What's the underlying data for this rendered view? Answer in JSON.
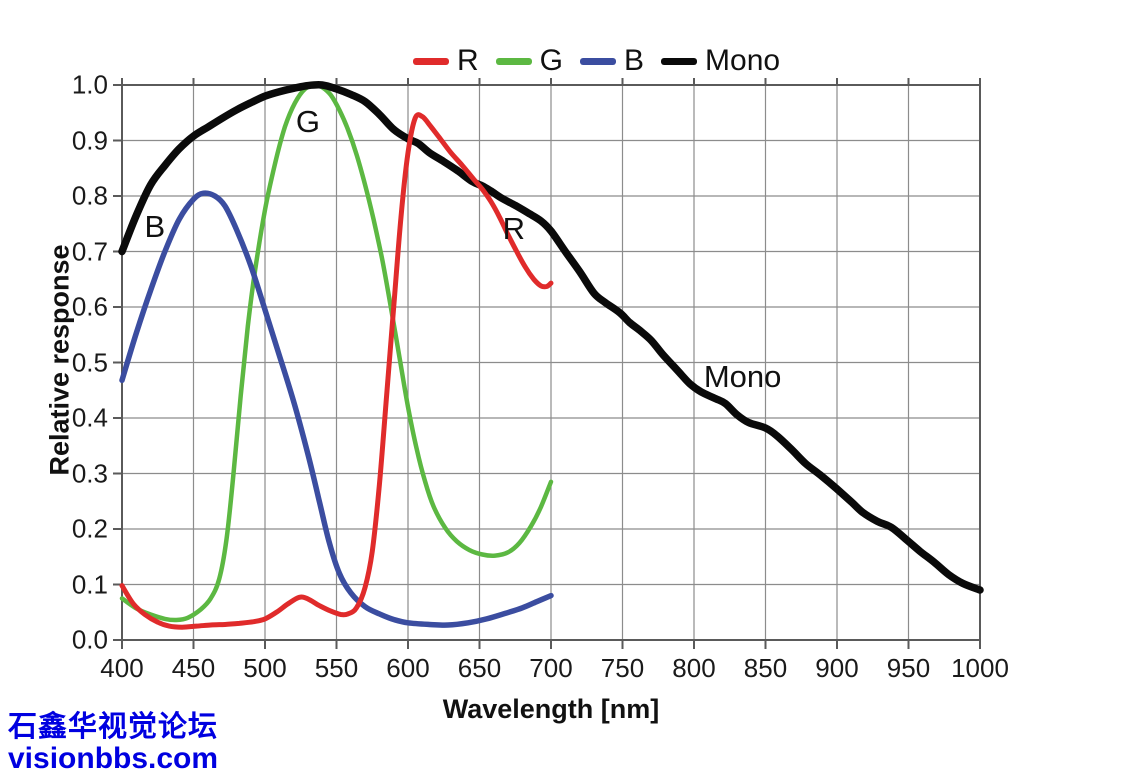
{
  "watermark": {
    "line1": "石鑫华视觉论坛",
    "line2": "visionbbs.com",
    "color": "#0000e0"
  },
  "chart_data": {
    "type": "line",
    "title": "",
    "xlabel": "Wavelength [nm]",
    "ylabel": "Relative response",
    "xlim": [
      400,
      1000
    ],
    "ylim": [
      0.0,
      1.0
    ],
    "grid": true,
    "colors": {
      "grid": "#8c8c8c",
      "axis": "#5a5a5a",
      "background": "#ffffff"
    },
    "x_tick_values": [
      400,
      450,
      500,
      550,
      600,
      650,
      700,
      750,
      800,
      850,
      900,
      950,
      1000
    ],
    "x_tick_labels": [
      "400",
      "450",
      "500",
      "550",
      "600",
      "650",
      "700",
      "750",
      "800",
      "850",
      "900",
      "950",
      "1000"
    ],
    "y_tick_values": [
      1.0,
      0.9,
      0.8,
      0.7,
      0.6,
      0.5,
      0.4,
      0.3,
      0.2,
      0.1,
      0.0
    ],
    "y_tick_labels": [
      "1.0",
      "0.9",
      "0.8",
      "0.7",
      "0.6",
      "0.5",
      "0.4",
      "0.3",
      "0.2",
      "0.1",
      "0.0"
    ],
    "legend": {
      "position": "top-center",
      "items": [
        {
          "label": "R",
          "color": "#e02b2b"
        },
        {
          "label": "G",
          "color": "#5cb842"
        },
        {
          "label": "B",
          "color": "#3b4da0"
        },
        {
          "label": "Mono",
          "color": "#0a0a0a"
        }
      ]
    },
    "annotations": [
      {
        "text": "B",
        "x": 423,
        "y": 0.745
      },
      {
        "text": "G",
        "x": 530,
        "y": 0.933
      },
      {
        "text": "R",
        "x": 674,
        "y": 0.74
      },
      {
        "text": "Mono",
        "x": 834,
        "y": 0.474
      }
    ],
    "series": [
      {
        "name": "G",
        "color": "#5cb842",
        "width": 4.5,
        "points": [
          [
            400,
            0.075
          ],
          [
            410,
            0.057
          ],
          [
            420,
            0.046
          ],
          [
            430,
            0.038
          ],
          [
            438,
            0.036
          ],
          [
            446,
            0.04
          ],
          [
            455,
            0.055
          ],
          [
            462,
            0.075
          ],
          [
            468,
            0.11
          ],
          [
            473,
            0.18
          ],
          [
            478,
            0.3
          ],
          [
            483,
            0.44
          ],
          [
            488,
            0.565
          ],
          [
            493,
            0.665
          ],
          [
            500,
            0.775
          ],
          [
            507,
            0.858
          ],
          [
            514,
            0.925
          ],
          [
            521,
            0.968
          ],
          [
            528,
            0.993
          ],
          [
            535,
            1.0
          ],
          [
            540,
            0.996
          ],
          [
            546,
            0.982
          ],
          [
            552,
            0.955
          ],
          [
            558,
            0.92
          ],
          [
            564,
            0.875
          ],
          [
            570,
            0.82
          ],
          [
            576,
            0.757
          ],
          [
            582,
            0.685
          ],
          [
            588,
            0.6
          ],
          [
            594,
            0.51
          ],
          [
            600,
            0.42
          ],
          [
            606,
            0.345
          ],
          [
            612,
            0.285
          ],
          [
            618,
            0.24
          ],
          [
            626,
            0.202
          ],
          [
            634,
            0.178
          ],
          [
            643,
            0.162
          ],
          [
            652,
            0.154
          ],
          [
            661,
            0.152
          ],
          [
            670,
            0.158
          ],
          [
            678,
            0.175
          ],
          [
            686,
            0.205
          ],
          [
            693,
            0.24
          ],
          [
            700,
            0.285
          ]
        ]
      },
      {
        "name": "B",
        "color": "#3b4da0",
        "width": 5.5,
        "points": [
          [
            400,
            0.468
          ],
          [
            410,
            0.553
          ],
          [
            420,
            0.63
          ],
          [
            430,
            0.7
          ],
          [
            440,
            0.758
          ],
          [
            450,
            0.794
          ],
          [
            457,
            0.805
          ],
          [
            465,
            0.8
          ],
          [
            472,
            0.782
          ],
          [
            480,
            0.74
          ],
          [
            490,
            0.675
          ],
          [
            500,
            0.595
          ],
          [
            510,
            0.513
          ],
          [
            520,
            0.43
          ],
          [
            530,
            0.335
          ],
          [
            538,
            0.25
          ],
          [
            545,
            0.175
          ],
          [
            552,
            0.12
          ],
          [
            560,
            0.085
          ],
          [
            570,
            0.06
          ],
          [
            580,
            0.047
          ],
          [
            590,
            0.037
          ],
          [
            600,
            0.031
          ],
          [
            615,
            0.028
          ],
          [
            628,
            0.027
          ],
          [
            642,
            0.031
          ],
          [
            655,
            0.038
          ],
          [
            668,
            0.048
          ],
          [
            680,
            0.058
          ],
          [
            690,
            0.069
          ],
          [
            700,
            0.08
          ]
        ]
      },
      {
        "name": "Mono",
        "color": "#0a0a0a",
        "width": 7.5,
        "points": [
          [
            400,
            0.7
          ],
          [
            410,
            0.765
          ],
          [
            420,
            0.82
          ],
          [
            430,
            0.855
          ],
          [
            440,
            0.885
          ],
          [
            450,
            0.908
          ],
          [
            460,
            0.924
          ],
          [
            470,
            0.94
          ],
          [
            480,
            0.955
          ],
          [
            490,
            0.968
          ],
          [
            500,
            0.98
          ],
          [
            510,
            0.988
          ],
          [
            520,
            0.994
          ],
          [
            530,
            0.999
          ],
          [
            540,
            1.0
          ],
          [
            550,
            0.993
          ],
          [
            560,
            0.983
          ],
          [
            570,
            0.97
          ],
          [
            580,
            0.947
          ],
          [
            590,
            0.92
          ],
          [
            600,
            0.903
          ],
          [
            607,
            0.895
          ],
          [
            615,
            0.878
          ],
          [
            625,
            0.862
          ],
          [
            635,
            0.845
          ],
          [
            645,
            0.826
          ],
          [
            652,
            0.818
          ],
          [
            658,
            0.809
          ],
          [
            665,
            0.797
          ],
          [
            675,
            0.783
          ],
          [
            685,
            0.768
          ],
          [
            693,
            0.755
          ],
          [
            700,
            0.737
          ],
          [
            710,
            0.7
          ],
          [
            720,
            0.664
          ],
          [
            730,
            0.625
          ],
          [
            738,
            0.608
          ],
          [
            748,
            0.59
          ],
          [
            755,
            0.572
          ],
          [
            762,
            0.558
          ],
          [
            770,
            0.54
          ],
          [
            778,
            0.515
          ],
          [
            788,
            0.487
          ],
          [
            797,
            0.462
          ],
          [
            805,
            0.447
          ],
          [
            815,
            0.435
          ],
          [
            822,
            0.426
          ],
          [
            830,
            0.406
          ],
          [
            838,
            0.392
          ],
          [
            850,
            0.382
          ],
          [
            858,
            0.368
          ],
          [
            868,
            0.344
          ],
          [
            878,
            0.318
          ],
          [
            888,
            0.298
          ],
          [
            900,
            0.272
          ],
          [
            910,
            0.249
          ],
          [
            918,
            0.23
          ],
          [
            928,
            0.214
          ],
          [
            938,
            0.203
          ],
          [
            948,
            0.182
          ],
          [
            958,
            0.16
          ],
          [
            968,
            0.14
          ],
          [
            978,
            0.118
          ],
          [
            988,
            0.102
          ],
          [
            1000,
            0.09
          ]
        ]
      },
      {
        "name": "R",
        "color": "#e02b2b",
        "width": 5,
        "points": [
          [
            400,
            0.098
          ],
          [
            408,
            0.065
          ],
          [
            416,
            0.046
          ],
          [
            425,
            0.032
          ],
          [
            433,
            0.025
          ],
          [
            442,
            0.023
          ],
          [
            452,
            0.025
          ],
          [
            462,
            0.027
          ],
          [
            472,
            0.028
          ],
          [
            482,
            0.03
          ],
          [
            492,
            0.033
          ],
          [
            500,
            0.038
          ],
          [
            508,
            0.05
          ],
          [
            516,
            0.065
          ],
          [
            524,
            0.077
          ],
          [
            530,
            0.074
          ],
          [
            538,
            0.062
          ],
          [
            546,
            0.052
          ],
          [
            553,
            0.046
          ],
          [
            558,
            0.047
          ],
          [
            564,
            0.058
          ],
          [
            570,
            0.095
          ],
          [
            575,
            0.16
          ],
          [
            580,
            0.28
          ],
          [
            585,
            0.44
          ],
          [
            590,
            0.6
          ],
          [
            595,
            0.76
          ],
          [
            600,
            0.878
          ],
          [
            605,
            0.94
          ],
          [
            610,
            0.943
          ],
          [
            616,
            0.925
          ],
          [
            622,
            0.905
          ],
          [
            630,
            0.878
          ],
          [
            638,
            0.855
          ],
          [
            646,
            0.83
          ],
          [
            652,
            0.812
          ],
          [
            658,
            0.79
          ],
          [
            664,
            0.762
          ],
          [
            670,
            0.73
          ],
          [
            676,
            0.7
          ],
          [
            682,
            0.672
          ],
          [
            688,
            0.65
          ],
          [
            693,
            0.638
          ],
          [
            697,
            0.637
          ],
          [
            700,
            0.643
          ]
        ]
      }
    ]
  }
}
